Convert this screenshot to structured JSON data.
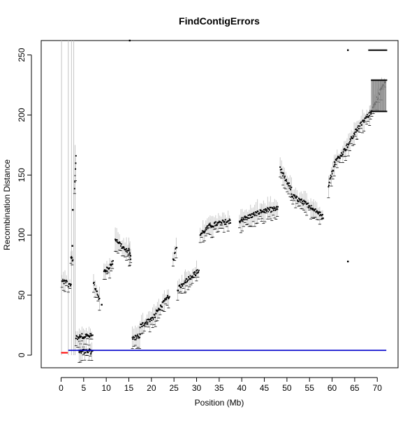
{
  "chart_data": {
    "type": "scatter",
    "title": "FindContigErrors",
    "xlabel": "Position (Mb)",
    "ylabel": "Recombination Distance",
    "xlim": [
      -4.4,
      74.6
    ],
    "ylim": [
      -10.5,
      262
    ],
    "xticks": [
      0,
      5,
      10,
      15,
      20,
      25,
      30,
      35,
      40,
      45,
      50,
      55,
      60,
      65,
      70
    ],
    "yticks": [
      0,
      50,
      100,
      150,
      200,
      250
    ],
    "grid": false,
    "legend": "none",
    "tall_lines": [
      {
        "x": 0.1,
        "y0": 0,
        "y1": 262
      },
      {
        "x": 1.6,
        "y0": 0,
        "y1": 262
      },
      {
        "x": 2.3,
        "y0": 0,
        "y1": 262
      },
      {
        "x": 2.8,
        "y0": 0,
        "y1": 262
      },
      {
        "x": 3.1,
        "y0": 0,
        "y1": 175
      }
    ],
    "segments": [
      {
        "x": [
          0.2,
          1.3
        ],
        "y": [
          61,
          61
        ]
      },
      {
        "x": [
          1.6,
          2.2
        ],
        "y": [
          58,
          58
        ]
      },
      {
        "x": [
          2.2,
          2.6
        ],
        "y": [
          82,
          78
        ]
      },
      {
        "x": [
          3.0,
          3.3
        ],
        "y": [
          140,
          165
        ]
      },
      {
        "x": [
          3.3,
          4.0
        ],
        "y": [
          15,
          13
        ]
      },
      {
        "x": [
          4.0,
          7.0
        ],
        "y": [
          16,
          16
        ]
      },
      {
        "x": [
          4.0,
          7.0
        ],
        "y": [
          3,
          3
        ]
      },
      {
        "x": [
          7.2,
          8.5
        ],
        "y": [
          60,
          47
        ]
      },
      {
        "x": [
          9.5,
          11.5
        ],
        "y": [
          69,
          77
        ]
      },
      {
        "x": [
          12.0,
          15.4
        ],
        "y": [
          97,
          83
        ]
      },
      {
        "x": [
          15.0,
          15.4
        ],
        "y": [
          90,
          80
        ]
      },
      {
        "x": [
          15.8,
          17.5
        ],
        "y": [
          14,
          16
        ]
      },
      {
        "x": [
          17.5,
          21.0
        ],
        "y": [
          24,
          33
        ]
      },
      {
        "x": [
          21.0,
          24.0
        ],
        "y": [
          35,
          50
        ]
      },
      {
        "x": [
          24.8,
          25.6
        ],
        "y": [
          78,
          90
        ]
      },
      {
        "x": [
          25.8,
          27.5
        ],
        "y": [
          55,
          62
        ]
      },
      {
        "x": [
          27.5,
          30.5
        ],
        "y": [
          62,
          70
        ]
      },
      {
        "x": [
          30.8,
          33.0
        ],
        "y": [
          100,
          108
        ]
      },
      {
        "x": [
          33.0,
          37.5
        ],
        "y": [
          108,
          112
        ]
      },
      {
        "x": [
          39.5,
          44.5
        ],
        "y": [
          112,
          120
        ]
      },
      {
        "x": [
          44.5,
          48.0
        ],
        "y": [
          120,
          122
        ]
      },
      {
        "x": [
          48.5,
          51.0
        ],
        "y": [
          155,
          138
        ]
      },
      {
        "x": [
          51.0,
          56.0
        ],
        "y": [
          133,
          122
        ]
      },
      {
        "x": [
          56.0,
          58.0
        ],
        "y": [
          122,
          115
        ]
      },
      {
        "x": [
          59.2,
          60.5
        ],
        "y": [
          142,
          158
        ]
      },
      {
        "x": [
          60.5,
          63.0
        ],
        "y": [
          160,
          172
        ]
      },
      {
        "x": [
          63.0,
          65.5
        ],
        "y": [
          172,
          188
        ]
      },
      {
        "x": [
          65.5,
          68.5
        ],
        "y": [
          188,
          202
        ]
      },
      {
        "x": [
          68.5,
          71.8
        ],
        "y": [
          202,
          228
        ]
      }
    ],
    "outliers": [
      {
        "x": 15.2,
        "y": 262
      },
      {
        "x": 63.5,
        "y": 254
      },
      {
        "x": 63.5,
        "y": 78
      },
      {
        "x": 9.0,
        "y": 42
      },
      {
        "x": 2.5,
        "y": 91
      },
      {
        "x": 2.6,
        "y": 121
      }
    ],
    "series": [
      {
        "name": "",
        "color": "#0000cc",
        "x": [
          1.6,
          72.0
        ],
        "y": [
          4,
          4
        ]
      },
      {
        "name": "",
        "color": "#ff0000",
        "x": [
          0.0,
          1.5
        ],
        "y": [
          2,
          2
        ]
      },
      {
        "name": "",
        "color": "#000000",
        "x": [
          68.0,
          72.2
        ],
        "y": [
          254,
          254
        ]
      },
      {
        "name": "",
        "color": "#000000",
        "x": [
          68.6,
          72.2
        ],
        "y": [
          229,
          229
        ]
      },
      {
        "name": "",
        "color": "#000000",
        "x": [
          68.6,
          72.2
        ],
        "y": [
          203,
          203
        ]
      }
    ]
  }
}
